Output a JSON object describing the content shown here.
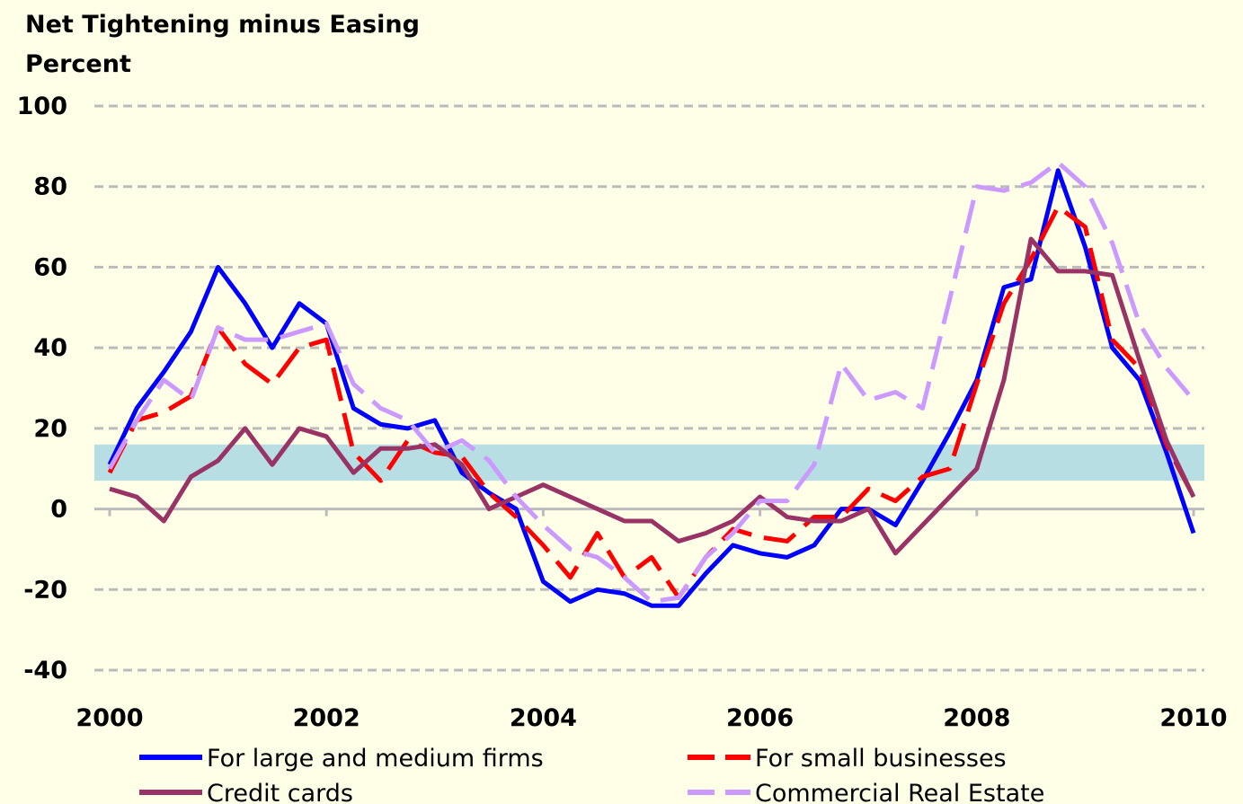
{
  "chart_data": {
    "type": "line",
    "title": "Net Tightening minus Easing",
    "y_label": "Percent",
    "x": [
      2000,
      2000.25,
      2000.5,
      2000.75,
      2001,
      2001.25,
      2001.5,
      2001.75,
      2002,
      2002.25,
      2002.5,
      2002.75,
      2003,
      2003.25,
      2003.5,
      2003.75,
      2004,
      2004.25,
      2004.5,
      2004.75,
      2005,
      2005.25,
      2005.5,
      2005.75,
      2006,
      2006.25,
      2006.5,
      2006.75,
      2007,
      2007.25,
      2007.5,
      2007.75,
      2008,
      2008.25,
      2008.5,
      2008.75,
      2009,
      2009.25,
      2009.5,
      2009.75,
      2010
    ],
    "series": [
      {
        "name": "For large and medium firms",
        "color": "#0000ff",
        "dashed": false,
        "values": [
          11,
          25,
          34,
          44,
          60,
          51,
          40,
          51,
          46,
          25,
          21,
          20,
          22,
          9,
          4,
          0,
          -18,
          -23,
          -20,
          -21,
          -24,
          -24,
          -16,
          -9,
          -11,
          -12,
          -9,
          0,
          0,
          -4,
          7,
          19,
          32,
          55,
          57,
          84,
          65,
          40,
          32,
          14,
          -6
        ]
      },
      {
        "name": "For small businesses",
        "color": "#ff0000",
        "dashed": true,
        "values": [
          9,
          22,
          24,
          28,
          45,
          36,
          31,
          40,
          42,
          14,
          7,
          17,
          14,
          13,
          4,
          -2,
          -9,
          -17,
          -6,
          -17,
          -12,
          -22,
          -12,
          -5,
          -7,
          -8,
          -2,
          -2,
          5,
          2,
          8,
          10,
          31,
          51,
          62,
          75,
          70,
          42,
          35,
          16,
          3
        ]
      },
      {
        "name": "Credit cards",
        "color": "#993366",
        "dashed": false,
        "values": [
          5,
          3,
          -3,
          8,
          12,
          20,
          11,
          20,
          18,
          9,
          15,
          15,
          16,
          11,
          0,
          3,
          6,
          3,
          0,
          -3,
          -3,
          -8,
          -6,
          -3,
          3,
          -2,
          -3,
          -3,
          0,
          -11,
          -4,
          3,
          10,
          32,
          67,
          59,
          59,
          58,
          37,
          17,
          3
        ]
      },
      {
        "name": "Commercial Real Estate",
        "color": "#cc99ff",
        "dashed": true,
        "values": [
          10,
          22,
          32,
          27,
          45,
          42,
          42,
          44,
          46,
          31,
          25,
          22,
          14,
          17,
          12,
          3,
          -4,
          -10,
          -12,
          -17,
          -23,
          -22,
          -12,
          -6,
          2,
          2,
          11,
          36,
          27,
          29,
          25,
          52,
          80,
          79,
          81,
          86,
          80,
          66,
          46,
          35,
          27
        ]
      }
    ],
    "shaded_range": [
      7,
      16
    ],
    "xlim": [
      2000,
      2010
    ],
    "xticks": [
      2000,
      2002,
      2004,
      2006,
      2008,
      2010
    ],
    "ylim": [
      -40,
      100
    ],
    "yticks": [
      -40,
      -20,
      0,
      20,
      40,
      60,
      80,
      100
    ],
    "grid": true
  }
}
